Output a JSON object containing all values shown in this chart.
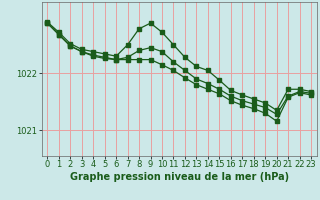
{
  "bg_color": "#cce8e8",
  "grid_color": "#e8a0a0",
  "line_color": "#1a5c1a",
  "xlabel": "Graphe pression niveau de la mer (hPa)",
  "xlabel_fontsize": 7.0,
  "tick_fontsize": 6.0,
  "ylabel_ticks": [
    1021,
    1022
  ],
  "ylim": [
    1020.55,
    1023.25
  ],
  "xlim": [
    -0.5,
    23.5
  ],
  "series1_x": [
    0,
    1,
    2,
    3,
    4,
    5,
    6,
    7,
    8,
    9,
    10,
    11,
    12,
    13,
    14,
    15,
    16,
    17,
    18,
    19,
    20,
    21,
    22,
    23
  ],
  "series1_y": [
    1022.9,
    1022.72,
    1022.52,
    1022.42,
    1022.38,
    1022.34,
    1022.3,
    1022.5,
    1022.78,
    1022.88,
    1022.72,
    1022.5,
    1022.28,
    1022.12,
    1022.05,
    1021.88,
    1021.7,
    1021.62,
    1021.55,
    1021.48,
    1021.35,
    1021.72,
    1021.72,
    1021.68
  ],
  "series2_x": [
    0,
    1,
    2,
    3,
    4,
    5,
    6,
    7,
    8,
    9,
    10,
    11,
    12,
    13,
    14,
    15,
    16,
    17,
    18,
    19,
    20,
    21,
    22,
    23
  ],
  "series2_y": [
    1022.88,
    1022.68,
    1022.48,
    1022.38,
    1022.32,
    1022.28,
    1022.24,
    1022.28,
    1022.4,
    1022.45,
    1022.38,
    1022.2,
    1022.05,
    1021.9,
    1021.82,
    1021.72,
    1021.6,
    1021.52,
    1021.46,
    1021.4,
    1021.28,
    1021.6,
    1021.68,
    1021.65
  ],
  "series3_x": [
    0,
    1,
    2,
    3,
    4,
    5,
    6,
    7,
    8,
    9,
    10,
    11,
    12,
    13,
    14,
    15,
    16,
    17,
    18,
    19,
    20,
    21,
    22,
    23
  ],
  "series3_y": [
    1022.88,
    1022.68,
    1022.48,
    1022.38,
    1022.3,
    1022.26,
    1022.24,
    1022.24,
    1022.24,
    1022.24,
    1022.15,
    1022.05,
    1021.92,
    1021.8,
    1021.72,
    1021.64,
    1021.52,
    1021.44,
    1021.38,
    1021.3,
    1021.16,
    1021.58,
    1021.66,
    1021.62
  ]
}
